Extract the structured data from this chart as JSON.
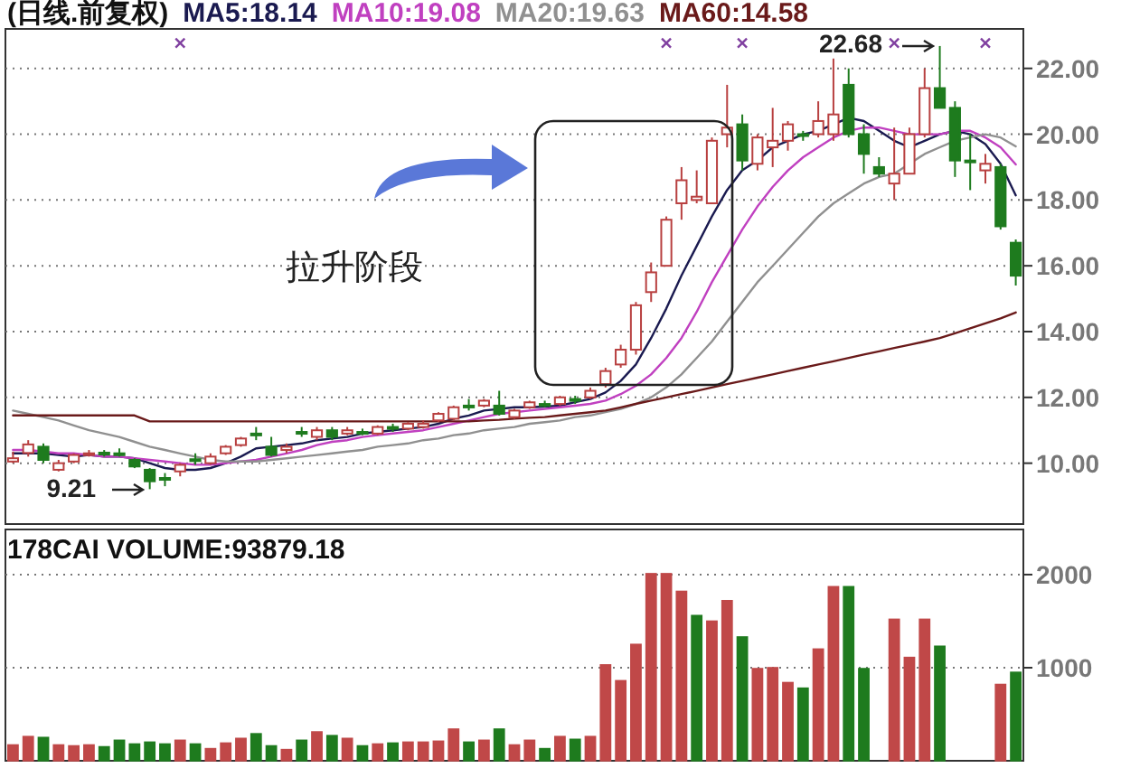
{
  "chart_data": [
    {
      "type": "candlestick",
      "title": "(日线.前复权)",
      "legend": "top",
      "grid": "y",
      "tick_labels": "y",
      "categories": [
        null,
        null,
        null,
        null,
        null,
        null,
        null,
        null,
        null,
        null,
        null,
        null,
        null,
        null,
        null,
        null,
        null,
        null,
        null,
        null,
        null,
        null,
        null,
        null,
        null,
        null,
        null,
        null,
        null,
        null,
        null,
        null,
        null,
        null,
        null,
        null,
        null,
        null,
        null,
        null,
        null,
        null,
        null,
        null,
        null,
        null,
        null,
        null,
        null,
        null,
        null,
        null,
        null,
        null,
        null,
        null,
        null,
        null,
        null,
        null,
        null,
        null,
        null,
        null,
        null,
        null,
        null
      ],
      "ylim": [
        8.15,
        23.2
      ],
      "yticks": [
        {
          "value": 10,
          "label": "10.00"
        },
        {
          "value": 12,
          "label": "12.00"
        },
        {
          "value": 14,
          "label": "14.00"
        },
        {
          "value": 16,
          "label": "16.00"
        },
        {
          "value": 18,
          "label": "18.00"
        },
        {
          "value": 20,
          "label": "20.00"
        },
        {
          "value": 22,
          "label": "22.00"
        }
      ],
      "ohlc": [
        [
          10.05,
          10.35,
          10.0,
          10.15
        ],
        [
          10.31,
          10.7,
          10.2,
          10.57
        ],
        [
          10.5,
          10.6,
          10.0,
          10.1
        ],
        [
          9.8,
          10.1,
          9.75,
          10.0
        ],
        [
          10.05,
          10.3,
          10.0,
          10.25
        ],
        [
          10.25,
          10.4,
          10.2,
          10.3
        ],
        [
          10.32,
          10.4,
          10.2,
          10.28
        ],
        [
          10.3,
          10.45,
          10.2,
          10.28
        ],
        [
          10.1,
          10.15,
          9.85,
          9.9
        ],
        [
          9.8,
          9.85,
          9.21,
          9.45
        ],
        [
          9.55,
          9.7,
          9.3,
          9.5
        ],
        [
          9.75,
          10.0,
          9.6,
          9.95
        ],
        [
          10.12,
          10.3,
          9.95,
          10.1
        ],
        [
          10.0,
          10.3,
          9.95,
          10.2
        ],
        [
          10.3,
          10.55,
          10.25,
          10.5
        ],
        [
          10.55,
          10.8,
          10.5,
          10.75
        ],
        [
          10.9,
          11.1,
          10.7,
          10.85
        ],
        [
          10.5,
          10.8,
          10.2,
          10.25
        ],
        [
          10.4,
          10.6,
          10.3,
          10.5
        ],
        [
          10.95,
          11.1,
          10.8,
          10.9
        ],
        [
          10.8,
          11.1,
          10.7,
          11.0
        ],
        [
          11.0,
          11.1,
          10.7,
          10.8
        ],
        [
          10.9,
          11.1,
          10.85,
          11.0
        ],
        [
          10.95,
          11.05,
          10.85,
          10.9
        ],
        [
          10.9,
          11.15,
          10.85,
          11.1
        ],
        [
          11.1,
          11.2,
          10.95,
          11.05
        ],
        [
          11.05,
          11.25,
          11.0,
          11.2
        ],
        [
          11.1,
          11.3,
          11.05,
          11.2
        ],
        [
          11.3,
          11.55,
          11.25,
          11.5
        ],
        [
          11.35,
          11.75,
          11.3,
          11.7
        ],
        [
          11.75,
          11.95,
          11.6,
          11.7
        ],
        [
          11.75,
          11.95,
          11.7,
          11.9
        ],
        [
          11.75,
          12.2,
          11.45,
          11.5
        ],
        [
          11.4,
          11.65,
          11.35,
          11.6
        ],
        [
          11.7,
          11.9,
          11.65,
          11.85
        ],
        [
          11.8,
          11.9,
          11.7,
          11.75
        ],
        [
          11.8,
          12.05,
          11.75,
          12.0
        ],
        [
          11.95,
          12.05,
          11.8,
          11.9
        ],
        [
          12.0,
          12.3,
          11.95,
          12.2
        ],
        [
          12.4,
          12.9,
          12.3,
          12.8
        ],
        [
          13.0,
          13.6,
          12.9,
          13.45
        ],
        [
          13.45,
          14.9,
          13.3,
          14.8
        ],
        [
          15.2,
          16.1,
          14.9,
          15.8
        ],
        [
          16.0,
          17.5,
          16.0,
          17.4
        ],
        [
          17.9,
          19.0,
          17.4,
          18.6
        ],
        [
          18.0,
          18.9,
          17.9,
          18.1
        ],
        [
          17.9,
          19.9,
          17.9,
          19.8
        ],
        [
          20.0,
          21.5,
          19.6,
          20.2
        ],
        [
          20.3,
          20.6,
          18.9,
          19.2
        ],
        [
          19.1,
          20.0,
          18.9,
          19.9
        ],
        [
          19.6,
          20.8,
          19.0,
          19.8
        ],
        [
          19.8,
          20.4,
          19.5,
          20.3
        ],
        [
          20.0,
          20.1,
          19.8,
          19.95
        ],
        [
          20.0,
          21.0,
          19.9,
          20.4
        ],
        [
          20.0,
          22.3,
          19.8,
          20.6
        ],
        [
          21.5,
          22.0,
          19.9,
          20.0
        ],
        [
          20.0,
          20.3,
          18.8,
          19.4
        ],
        [
          19.0,
          19.3,
          18.7,
          18.8
        ],
        [
          18.5,
          20.2,
          18.0,
          18.8
        ],
        [
          18.8,
          20.2,
          18.8,
          20.0
        ],
        [
          20.0,
          22.0,
          19.9,
          21.4
        ],
        [
          21.4,
          22.68,
          20.8,
          20.8
        ],
        [
          20.8,
          21.0,
          18.7,
          19.2
        ],
        [
          19.2,
          20.0,
          18.3,
          19.15
        ],
        [
          18.9,
          19.4,
          18.5,
          19.1
        ],
        [
          19.0,
          19.1,
          17.1,
          17.2
        ],
        [
          16.7,
          16.8,
          15.4,
          15.7
        ]
      ],
      "series": [
        {
          "type": "line",
          "name": "MA5:18.14",
          "color": "#1a1a50",
          "values": [
            10.3,
            10.3,
            10.3,
            10.25,
            10.2,
            10.25,
            10.2,
            10.2,
            10.15,
            10.0,
            9.85,
            9.8,
            9.8,
            9.85,
            10.0,
            10.2,
            10.45,
            10.5,
            10.55,
            10.6,
            10.7,
            10.75,
            10.8,
            10.9,
            10.95,
            11.0,
            11.05,
            11.1,
            11.2,
            11.35,
            11.45,
            11.6,
            11.65,
            11.7,
            11.7,
            11.72,
            11.75,
            11.85,
            11.95,
            12.15,
            12.5,
            13.0,
            13.8,
            14.7,
            15.7,
            16.6,
            17.5,
            18.3,
            18.9,
            19.2,
            19.6,
            19.8,
            20.0,
            20.1,
            20.3,
            20.5,
            20.4,
            20.1,
            19.8,
            19.6,
            19.8,
            20.0,
            20.1,
            20.0,
            19.7,
            19.1,
            18.14
          ]
        },
        {
          "type": "line",
          "name": "MA10:19.08",
          "color": "#c040c0",
          "values": [
            10.4,
            10.4,
            10.35,
            10.3,
            10.3,
            10.25,
            10.2,
            10.2,
            10.15,
            10.1,
            10.05,
            10.0,
            9.95,
            9.95,
            10.0,
            10.05,
            10.1,
            10.2,
            10.3,
            10.4,
            10.55,
            10.65,
            10.7,
            10.8,
            10.85,
            10.9,
            10.95,
            11.0,
            11.1,
            11.2,
            11.3,
            11.4,
            11.5,
            11.55,
            11.6,
            11.65,
            11.7,
            11.75,
            11.8,
            11.9,
            12.1,
            12.35,
            12.7,
            13.2,
            13.8,
            14.6,
            15.5,
            16.3,
            17.1,
            17.8,
            18.4,
            18.9,
            19.3,
            19.6,
            19.9,
            20.1,
            20.2,
            20.2,
            20.1,
            20.0,
            20.0,
            20.0,
            20.1,
            20.1,
            19.9,
            19.6,
            19.08
          ]
        },
        {
          "type": "line",
          "name": "MA20:19.63",
          "color": "#909090",
          "values": [
            11.6,
            11.5,
            11.4,
            11.3,
            11.15,
            11.0,
            10.9,
            10.8,
            10.65,
            10.5,
            10.4,
            10.3,
            10.2,
            10.1,
            10.05,
            10.05,
            10.05,
            10.1,
            10.15,
            10.2,
            10.25,
            10.3,
            10.35,
            10.4,
            10.5,
            10.55,
            10.6,
            10.7,
            10.75,
            10.85,
            10.9,
            11.0,
            11.05,
            11.1,
            11.2,
            11.25,
            11.3,
            11.4,
            11.45,
            11.55,
            11.65,
            11.8,
            12.0,
            12.3,
            12.7,
            13.2,
            13.7,
            14.3,
            14.9,
            15.5,
            16.0,
            16.5,
            17.0,
            17.5,
            17.9,
            18.2,
            18.5,
            18.7,
            18.8,
            19.1,
            19.4,
            19.6,
            19.8,
            19.9,
            20.0,
            19.9,
            19.63
          ]
        },
        {
          "type": "line",
          "name": "MA60:14.58",
          "color": "#6a1a1a",
          "values": [
            11.45,
            11.45,
            11.45,
            11.45,
            11.45,
            11.45,
            11.45,
            11.45,
            11.45,
            11.27,
            11.27,
            11.27,
            11.27,
            11.27,
            11.27,
            11.27,
            11.27,
            11.27,
            11.27,
            11.27,
            11.27,
            11.27,
            11.27,
            11.27,
            11.27,
            11.27,
            11.27,
            11.27,
            11.27,
            11.27,
            11.27,
            11.3,
            11.32,
            11.35,
            11.38,
            11.4,
            11.45,
            11.5,
            11.55,
            11.6,
            11.7,
            11.8,
            11.9,
            12.0,
            12.1,
            12.2,
            12.3,
            12.4,
            12.5,
            12.6,
            12.7,
            12.8,
            12.9,
            13.0,
            13.1,
            13.2,
            13.3,
            13.4,
            13.5,
            13.6,
            13.7,
            13.8,
            13.95,
            14.1,
            14.25,
            14.4,
            14.58
          ]
        },
        {
          "type": "scatter",
          "marker": "cross",
          "color": "#8040a0",
          "values": [
            null,
            null,
            null,
            null,
            null,
            null,
            null,
            null,
            null,
            null,
            null,
            22.77,
            null,
            null,
            null,
            null,
            null,
            null,
            null,
            null,
            null,
            null,
            null,
            null,
            null,
            null,
            null,
            null,
            null,
            null,
            null,
            null,
            null,
            null,
            null,
            null,
            null,
            null,
            null,
            null,
            null,
            null,
            null,
            22.77,
            null,
            null,
            null,
            null,
            22.77,
            null,
            null,
            null,
            null,
            null,
            null,
            null,
            null,
            null,
            22.77,
            null,
            null,
            null,
            null,
            null,
            22.77,
            null,
            null
          ]
        }
      ],
      "annotations": [
        "拉升阶段",
        "22.68",
        "9.21"
      ]
    },
    {
      "type": "bar",
      "title": "178CAI VOLUME:93879.18",
      "grid": "y",
      "tick_labels": "y",
      "categories": [
        null,
        null,
        null,
        null,
        null,
        null,
        null,
        null,
        null,
        null,
        null,
        null,
        null,
        null,
        null,
        null,
        null,
        null,
        null,
        null,
        null,
        null,
        null,
        null,
        null,
        null,
        null,
        null,
        null,
        null,
        null,
        null,
        null,
        null,
        null,
        null,
        null,
        null,
        null,
        null,
        null,
        null,
        null,
        null,
        null,
        null,
        null,
        null,
        null,
        null,
        null,
        null,
        null,
        null,
        null,
        null,
        null,
        null,
        null,
        null,
        null,
        null,
        null,
        null,
        null,
        null,
        null
      ],
      "ylim": [
        0,
        2485
      ],
      "yticks": [
        1000,
        2000
      ],
      "values": [
        170,
        260,
        250,
        170,
        160,
        170,
        150,
        220,
        180,
        200,
        180,
        220,
        180,
        130,
        190,
        240,
        290,
        160,
        120,
        220,
        310,
        270,
        240,
        160,
        180,
        190,
        200,
        200,
        210,
        340,
        200,
        220,
        340,
        170,
        220,
        130,
        260,
        230,
        260,
        1030,
        860,
        1250,
        2010,
        2010,
        1820,
        1560,
        1500,
        1720,
        1330,
        990,
        1000,
        840,
        780,
        1200,
        1870,
        1870,
        990,
        null,
        1520,
        1110,
        1520,
        1230,
        null,
        null,
        null,
        820,
        950
      ],
      "colors": [
        "#c04848",
        "#c04848",
        "#1e7b1e",
        "#c04848",
        "#c04848",
        "#c04848",
        "#1e7b1e",
        "#1e7b1e",
        "#1e7b1e",
        "#1e7b1e",
        "#1e7b1e",
        "#c04848",
        "#1e7b1e",
        "#c04848",
        "#c04848",
        "#c04848",
        "#1e7b1e",
        "#1e7b1e",
        "#c04848",
        "#1e7b1e",
        "#c04848",
        "#1e7b1e",
        "#c04848",
        "#1e7b1e",
        "#c04848",
        "#1e7b1e",
        "#c04848",
        "#c04848",
        "#c04848",
        "#c04848",
        "#1e7b1e",
        "#c04848",
        "#1e7b1e",
        "#c04848",
        "#c04848",
        "#1e7b1e",
        "#c04848",
        "#1e7b1e",
        "#c04848",
        "#c04848",
        "#c04848",
        "#c04848",
        "#c04848",
        "#c04848",
        "#c04848",
        "#1e7b1e",
        "#c04848",
        "#c04848",
        "#1e7b1e",
        "#c04848",
        "#c04848",
        "#c04848",
        "#1e7b1e",
        "#c04848",
        "#c04848",
        "#1e7b1e",
        "#1e7b1e",
        null,
        "#c04848",
        "#c04848",
        "#c04848",
        "#1e7b1e",
        null,
        null,
        null,
        "#c04848",
        "#1e7b1e"
      ]
    }
  ]
}
